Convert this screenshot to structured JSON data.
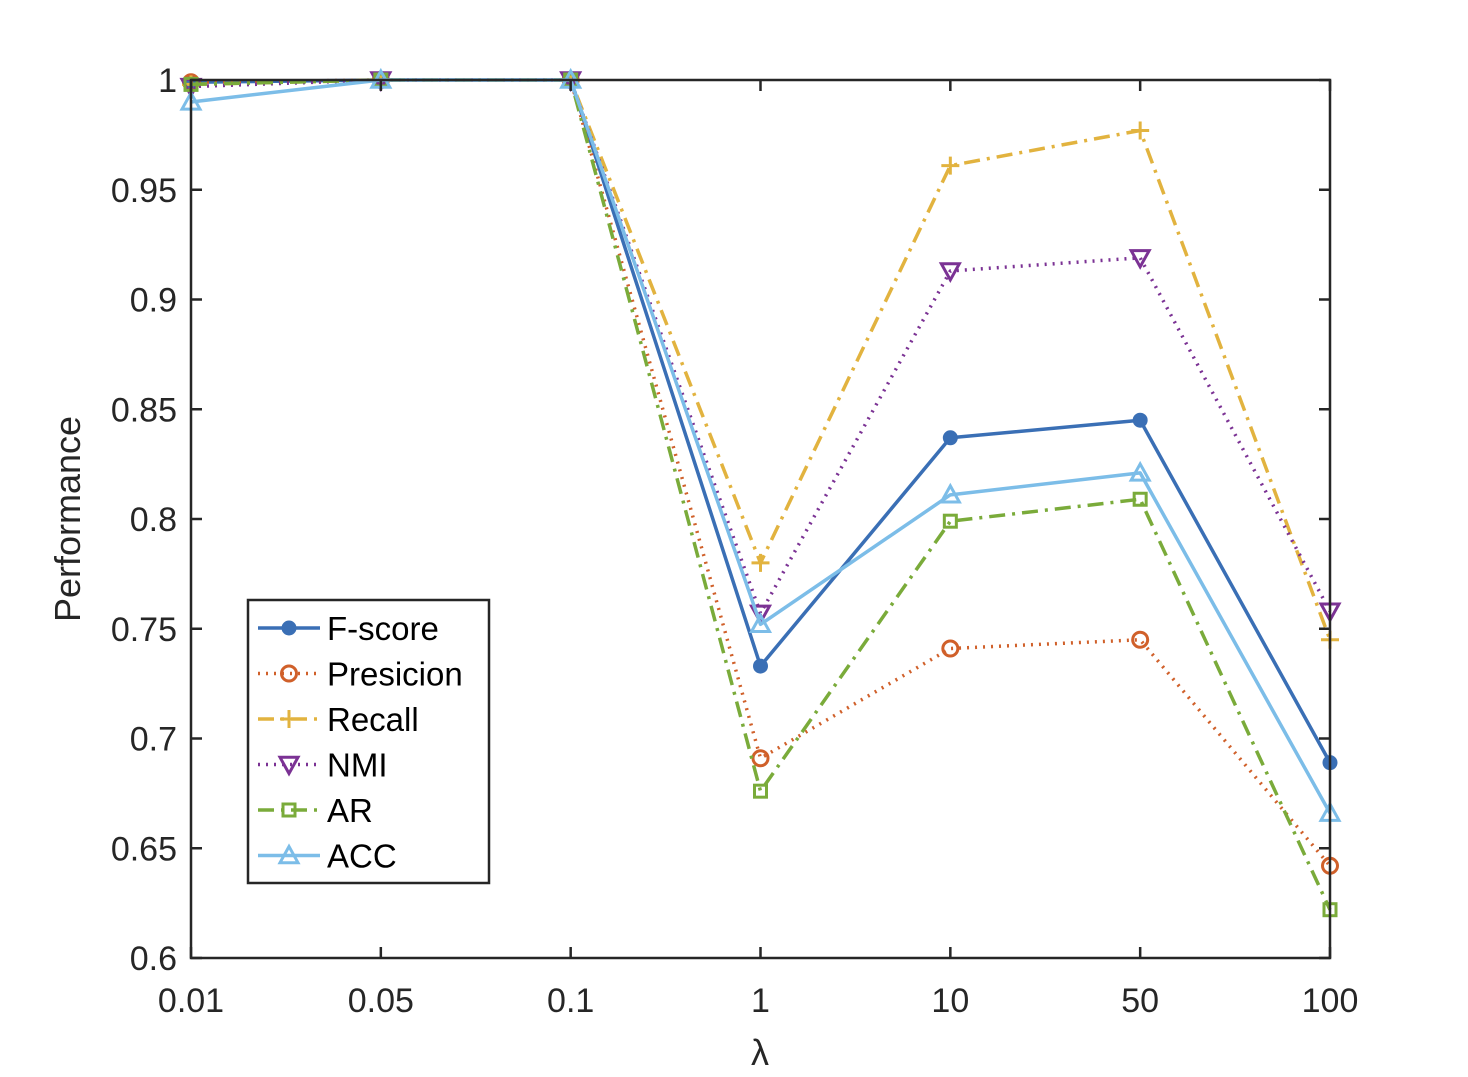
{
  "chart_data": {
    "type": "line",
    "title": "",
    "xlabel": "λ",
    "ylabel": "Performance",
    "categories": [
      "0.01",
      "0.05",
      "0.1",
      "1",
      "10",
      "50",
      "100"
    ],
    "ylim": [
      0.6,
      1.0
    ],
    "yticks": [
      "0.6",
      "0.65",
      "0.7",
      "0.75",
      "0.8",
      "0.85",
      "0.9",
      "0.95",
      "1"
    ],
    "grid": false,
    "legend_position": "lower-left",
    "series": [
      {
        "name": "F-score",
        "color": "#3a6fb5",
        "dash": "solid",
        "marker": "dot",
        "values": [
          0.999,
          1.0,
          1.0,
          0.733,
          0.837,
          0.845,
          0.689
        ]
      },
      {
        "name": "Presicion",
        "color": "#d0602a",
        "dash": "dotted",
        "marker": "circle",
        "values": [
          0.999,
          1.0,
          1.0,
          0.691,
          0.741,
          0.745,
          0.642
        ]
      },
      {
        "name": "Recall",
        "color": "#e2b33f",
        "dash": "dashdot",
        "marker": "plus",
        "values": [
          0.998,
          1.0,
          1.0,
          0.78,
          0.961,
          0.977,
          0.745
        ]
      },
      {
        "name": "NMI",
        "color": "#7b3294",
        "dash": "dotted",
        "marker": "triangle-down",
        "values": [
          0.997,
          1.0,
          1.0,
          0.757,
          0.913,
          0.919,
          0.758
        ]
      },
      {
        "name": "AR",
        "color": "#7aab3a",
        "dash": "dashdot",
        "marker": "square",
        "values": [
          0.998,
          1.0,
          1.0,
          0.676,
          0.799,
          0.809,
          0.622
        ]
      },
      {
        "name": "ACC",
        "color": "#7cbde8",
        "dash": "solid",
        "marker": "triangle-up",
        "values": [
          0.99,
          1.0,
          1.0,
          0.752,
          0.811,
          0.821,
          0.666
        ]
      }
    ]
  }
}
